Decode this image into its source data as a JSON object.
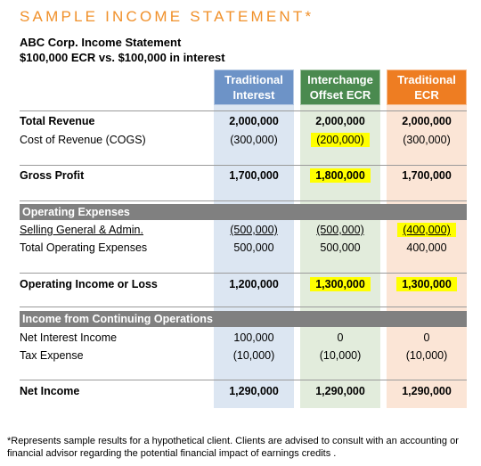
{
  "title": "SAMPLE INCOME STATEMENT*",
  "subtitle_line1": "ABC Corp. Income Statement",
  "subtitle_line2": "$100,000 ECR vs. $100,000 in interest",
  "columns": [
    {
      "line1": "Traditional",
      "line2": "Interest",
      "color": "#6d93c7"
    },
    {
      "line1": "Interchange",
      "line2": "Offset ECR",
      "color": "#4a8a4f"
    },
    {
      "line1": "Traditional",
      "line2": "ECR",
      "color": "#ee7d22"
    }
  ],
  "rows": {
    "total_revenue": {
      "label": "Total Revenue",
      "values": [
        "2,000,000",
        "2,000,000",
        "2,000,000"
      ]
    },
    "cogs": {
      "label": "Cost of Revenue (COGS)",
      "values": [
        "(300,000)",
        "(200,000)",
        "(300,000)"
      ]
    },
    "gross_profit": {
      "label": "Gross Profit",
      "values": [
        "1,700,000",
        "1,800,000",
        "1,700,000"
      ]
    },
    "sga": {
      "label": "Selling General & Admin.",
      "values": [
        "(500,000)",
        "(500,000)",
        "(400,000)"
      ]
    },
    "total_opex": {
      "label": "Total Operating Expenses",
      "values": [
        "500,000",
        "500,000",
        "400,000"
      ]
    },
    "operating_income": {
      "label": "Operating Income or Loss",
      "values": [
        "1,200,000",
        "1,300,000",
        "1,300,000"
      ]
    },
    "net_interest": {
      "label": "Net Interest Income",
      "values": [
        "100,000",
        "0",
        "0"
      ]
    },
    "tax": {
      "label": "Tax Expense",
      "values": [
        "(10,000)",
        "(10,000)",
        "(10,000)"
      ]
    },
    "net_income": {
      "label": "Net Income",
      "values": [
        "1,290,000",
        "1,290,000",
        "1,290,000"
      ]
    }
  },
  "sections": {
    "operating_expenses": "Operating Expenses",
    "continuing_operations": "Income from Continuing Operations"
  },
  "highlight_color": "#ffff00",
  "footnote": "*Represents sample results for a hypothetical client.  Clients are advised to consult with an accounting or financial advisor regarding the potential financial impact of earnings credits ."
}
